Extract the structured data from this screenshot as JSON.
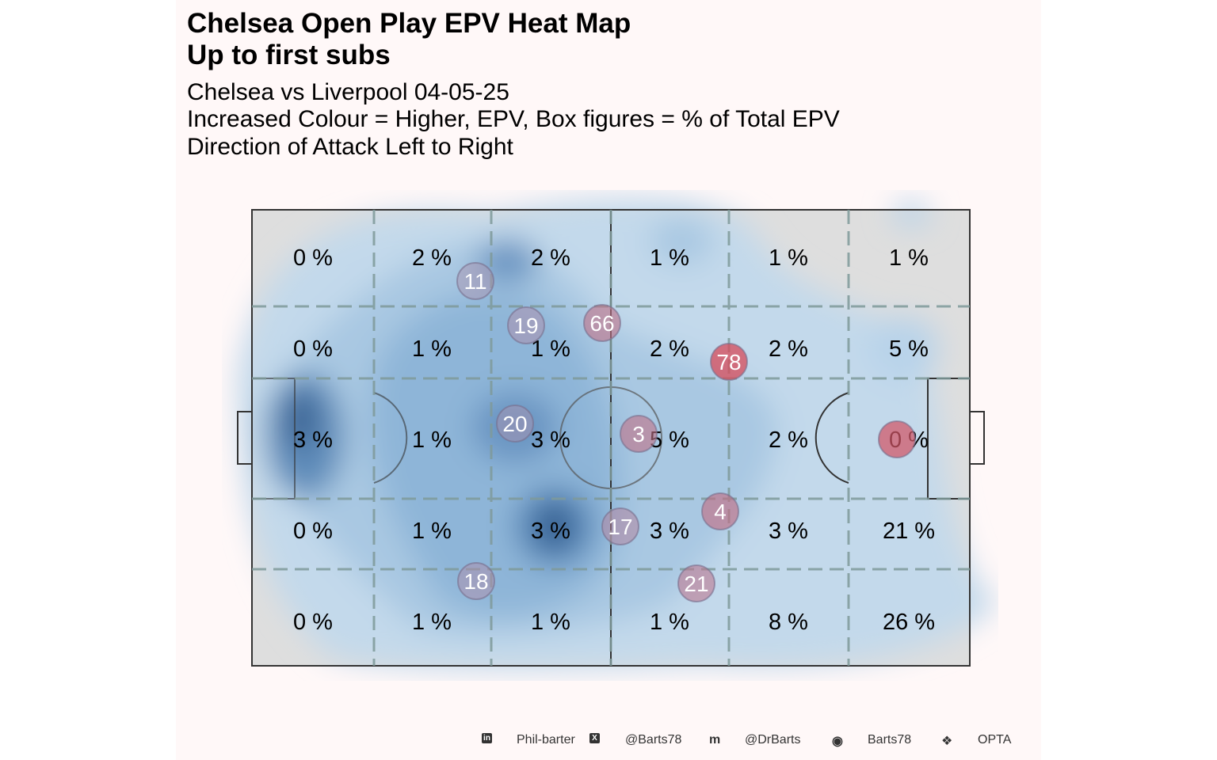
{
  "title": {
    "line1": "Chelsea Open Play EPV Heat Map",
    "line2": "Up to first subs"
  },
  "subtitle": {
    "line1": "Chelsea vs Liverpool 04-05-25",
    "line2": "Increased Colour = Higher, EPV, Box figures = % of Total EPV",
    "line3": "Direction of Attack Left to Right"
  },
  "chart_data": {
    "type": "heatmap",
    "title": "Chelsea Open Play EPV Heat Map",
    "direction": "left-to-right",
    "zone_labels": [
      [
        "0 %",
        "2 %",
        "2 %",
        "1 %",
        "1 %",
        "1 %"
      ],
      [
        "0 %",
        "1 %",
        "1 %",
        "2 %",
        "2 %",
        "5 %"
      ],
      [
        "3 %",
        "1 %",
        "3 %",
        "5 %",
        "2 %",
        "0 %"
      ],
      [
        "0 %",
        "1 %",
        "3 %",
        "3 %",
        "3 %",
        "21 %"
      ],
      [
        "0 %",
        "1 %",
        "1 %",
        "1 %",
        "8 %",
        "26 %"
      ]
    ],
    "players": [
      {
        "number": "11",
        "epv_share": 0.05
      },
      {
        "number": "19",
        "epv_share": 0.1
      },
      {
        "number": "66",
        "epv_share": 0.4
      },
      {
        "number": "78",
        "epv_share": 0.8
      },
      {
        "number": "20",
        "epv_share": 0.05
      },
      {
        "number": "3",
        "epv_share": 0.4
      },
      {
        "number": "4",
        "epv_share": 0.45
      },
      {
        "number": "17",
        "epv_share": 0.2
      },
      {
        "number": "18",
        "epv_share": 0.1
      },
      {
        "number": "21",
        "epv_share": 0.35
      },
      {
        "number": "",
        "epv_share": 0.7
      }
    ],
    "colors": {
      "low": "#c6dcee",
      "high": "#2f5a8a",
      "player_high": "#e0303f"
    }
  },
  "footer": {
    "linkedin": "Phil-barter",
    "x": "@Barts78",
    "mastodon": "@DrBarts",
    "github": "Barts78",
    "source": "OPTA"
  }
}
